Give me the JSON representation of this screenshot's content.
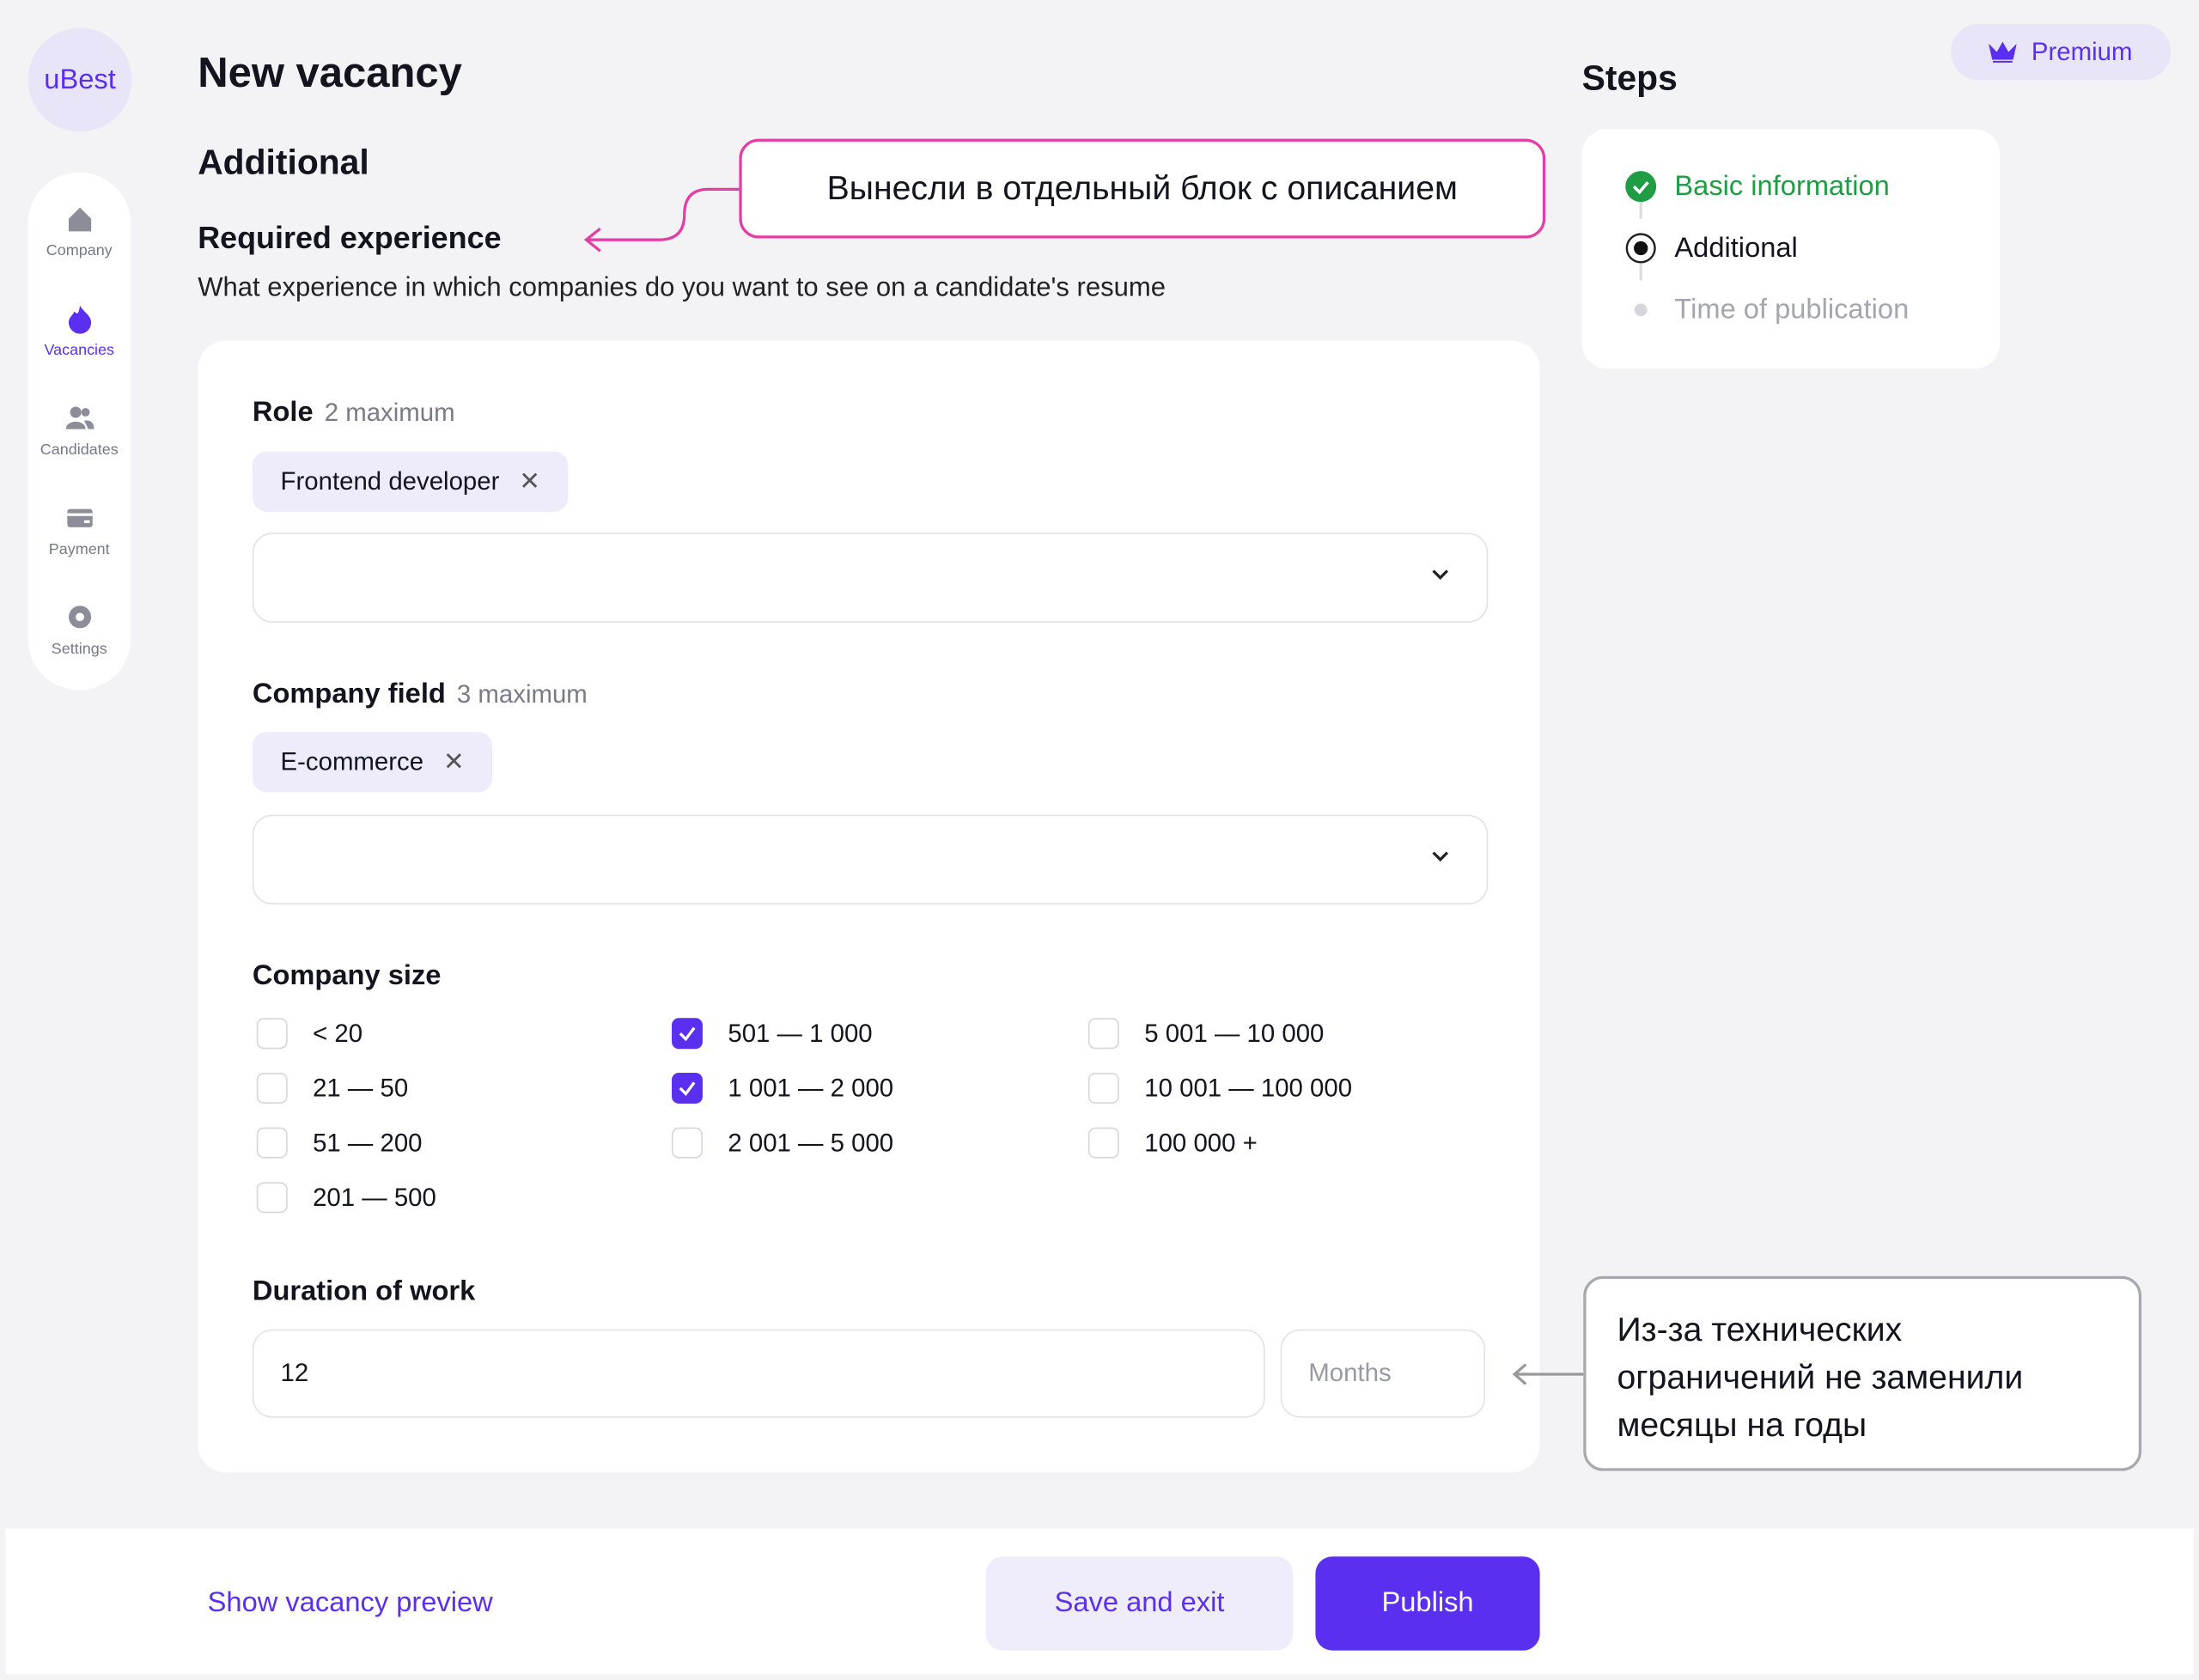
{
  "app": {
    "logo": "uBest",
    "premium": "Premium"
  },
  "nav": [
    "Company",
    "Vacancies",
    "Candidates",
    "Payment",
    "Settings"
  ],
  "header": {
    "title": "New vacancy",
    "section": "Additional",
    "subsection": "Required experience",
    "description": "What experience in which companies do you want to see on a candidate's resume"
  },
  "form": {
    "role": {
      "label": "Role",
      "hint": "2 maximum",
      "chips": [
        "Frontend developer"
      ]
    },
    "company_field": {
      "label": "Company field",
      "hint": "3 maximum",
      "chips": [
        "E-commerce"
      ]
    },
    "company_size": {
      "label": "Company size",
      "options": [
        {
          "label": "< 20",
          "checked": false
        },
        {
          "label": "21 — 50",
          "checked": false
        },
        {
          "label": "51 — 200",
          "checked": false
        },
        {
          "label": "201 — 500",
          "checked": false
        },
        {
          "label": "501 — 1 000",
          "checked": true
        },
        {
          "label": "1 001 — 2 000",
          "checked": true
        },
        {
          "label": "2 001 — 5 000",
          "checked": false
        },
        {
          "label": "5 001 — 10 000",
          "checked": false
        },
        {
          "label": "10 001 — 100 000",
          "checked": false
        },
        {
          "label": "100 000 +",
          "checked": false
        }
      ]
    },
    "duration": {
      "label": "Duration of work",
      "value": "12",
      "unit": "Months"
    }
  },
  "steps": {
    "title": "Steps",
    "items": [
      "Basic information",
      "Additional",
      "Time of publication"
    ]
  },
  "annotations": [
    "Вынесли в отдельный блок с описанием",
    "Из-за технических ограничений не заменили месяцы на годы"
  ],
  "footer": {
    "preview": "Show vacancy preview",
    "save": "Save and exit",
    "publish": "Publish"
  }
}
